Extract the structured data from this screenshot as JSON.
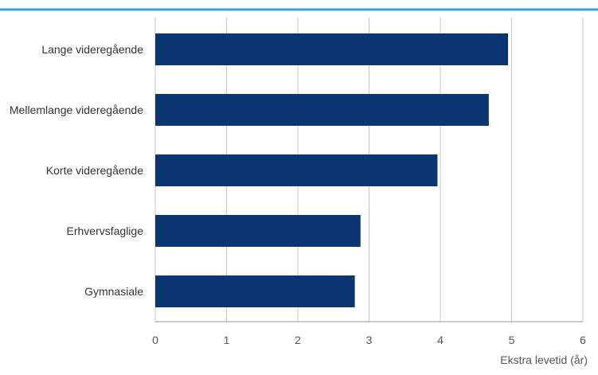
{
  "colors": {
    "top_rule": "#3a9bd5",
    "bar": "#0a3570",
    "grid": "#c8c8c8",
    "baseline": "#9a9a9a"
  },
  "chart_data": {
    "type": "bar",
    "orientation": "horizontal",
    "categories": [
      "Lange videregående",
      "Mellemlange videregående",
      "Korte videregående",
      "Erhvervsfaglige",
      "Gymnasiale"
    ],
    "values": [
      4.95,
      4.68,
      3.96,
      2.88,
      2.8
    ],
    "xlabel": "Ekstra levetid (år)",
    "ylabel": "",
    "xlim": [
      0,
      6
    ],
    "xticks": [
      "0",
      "1",
      "2",
      "3",
      "4",
      "5",
      "6"
    ],
    "grid": true,
    "legend": "none"
  }
}
